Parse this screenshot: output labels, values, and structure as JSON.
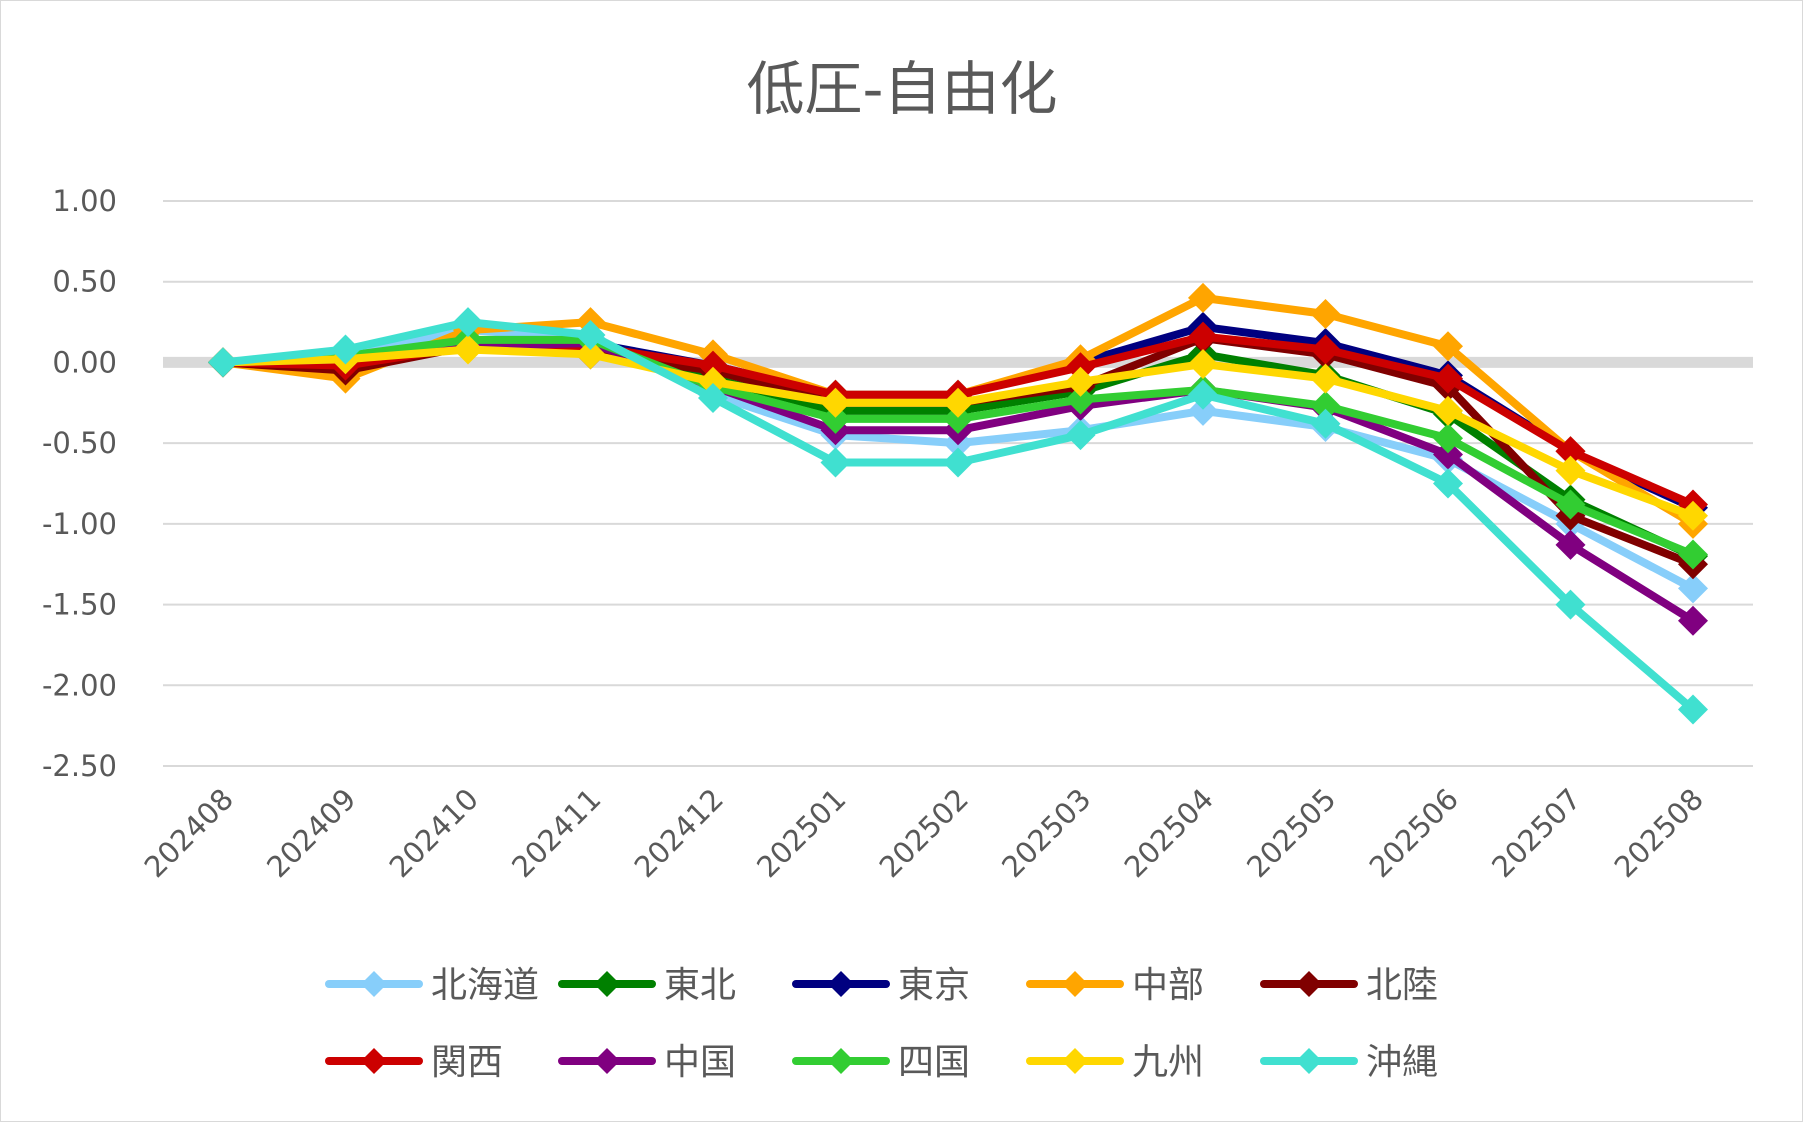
{
  "chart_data": {
    "type": "line",
    "title": "低圧-自由化",
    "xlabel": "",
    "ylabel": "",
    "ylim": [
      -2.5,
      1.0
    ],
    "y_ticks": [
      "1.00",
      "0.50",
      "0.00",
      "-0.50",
      "-1.00",
      "-1.50",
      "-2.00",
      "-2.50"
    ],
    "y_tick_values": [
      1.0,
      0.5,
      0.0,
      -0.5,
      -1.0,
      -1.5,
      -2.0,
      -2.5
    ],
    "grid": true,
    "legend_position": "bottom",
    "x": [
      "202408",
      "202409",
      "202410",
      "202411",
      "202412",
      "202501",
      "202502",
      "202503",
      "202504",
      "202505",
      "202506",
      "202507",
      "202508"
    ],
    "series": [
      {
        "name": "北海道",
        "color": "#87cefa",
        "values": [
          0,
          0.05,
          0.2,
          0.15,
          -0.2,
          -0.45,
          -0.5,
          -0.42,
          -0.3,
          -0.4,
          -0.6,
          -1.0,
          -1.4
        ]
      },
      {
        "name": "東北",
        "color": "#008000",
        "values": [
          0,
          0.02,
          0.14,
          0.12,
          -0.1,
          -0.3,
          -0.3,
          -0.18,
          0.05,
          -0.08,
          -0.32,
          -0.85,
          -1.2
        ]
      },
      {
        "name": "東京",
        "color": "#000080",
        "values": [
          0,
          -0.05,
          0.12,
          0.12,
          -0.02,
          -0.2,
          -0.2,
          0.0,
          0.22,
          0.12,
          -0.08,
          -0.55,
          -0.9
        ]
      },
      {
        "name": "中部",
        "color": "#ffa500",
        "values": [
          0,
          -0.1,
          0.2,
          0.25,
          0.05,
          -0.2,
          -0.2,
          0.02,
          0.4,
          0.3,
          0.1,
          -0.55,
          -1.0
        ]
      },
      {
        "name": "北陸",
        "color": "#800000",
        "values": [
          0,
          -0.05,
          0.1,
          0.05,
          -0.05,
          -0.25,
          -0.25,
          -0.15,
          0.15,
          0.05,
          -0.15,
          -0.95,
          -1.25
        ]
      },
      {
        "name": "関西",
        "color": "#cc0000",
        "values": [
          0,
          -0.02,
          0.1,
          0.1,
          -0.02,
          -0.2,
          -0.2,
          -0.03,
          0.16,
          0.08,
          -0.1,
          -0.55,
          -0.88
        ]
      },
      {
        "name": "中国",
        "color": "#800080",
        "values": [
          0,
          0.02,
          0.1,
          0.12,
          -0.15,
          -0.42,
          -0.42,
          -0.27,
          -0.17,
          -0.28,
          -0.57,
          -1.13,
          -1.6
        ]
      },
      {
        "name": "四国",
        "color": "#32cd32",
        "values": [
          0,
          0.04,
          0.14,
          0.14,
          -0.15,
          -0.35,
          -0.35,
          -0.23,
          -0.17,
          -0.27,
          -0.47,
          -0.88,
          -1.19
        ]
      },
      {
        "name": "九州",
        "color": "#ffd700",
        "values": [
          0,
          0.02,
          0.08,
          0.05,
          -0.12,
          -0.25,
          -0.25,
          -0.12,
          -0.01,
          -0.1,
          -0.3,
          -0.67,
          -0.95
        ]
      },
      {
        "name": "沖縄",
        "color": "#40e0d0",
        "values": [
          0,
          0.08,
          0.25,
          0.17,
          -0.22,
          -0.62,
          -0.62,
          -0.45,
          -0.2,
          -0.38,
          -0.75,
          -1.5,
          -2.15
        ]
      }
    ]
  }
}
